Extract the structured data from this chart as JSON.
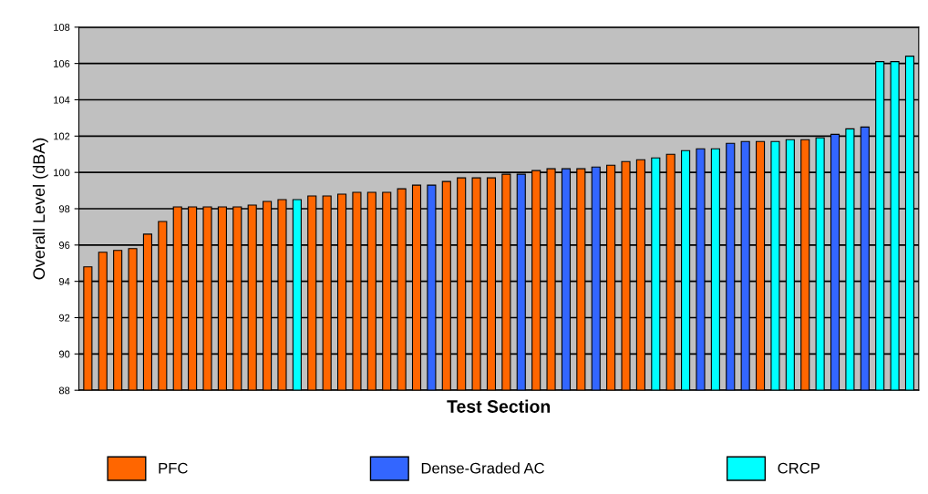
{
  "chart_data": {
    "type": "bar",
    "xlabel": "Test Section",
    "ylabel": "Overall Level (dBA)",
    "categories": [
      null,
      null,
      null,
      null,
      null,
      null,
      null,
      null,
      null,
      null,
      null,
      null,
      null,
      null,
      null,
      null,
      null,
      null,
      null,
      null,
      null,
      null,
      null,
      null,
      null,
      null,
      null,
      null,
      null,
      null,
      null,
      null,
      null,
      null,
      null,
      null,
      null,
      null,
      null,
      null,
      null,
      null,
      null,
      null,
      null,
      null,
      null,
      null,
      null,
      null,
      null,
      null,
      null,
      null,
      null,
      null
    ],
    "series": [
      {
        "name": "PFC",
        "color": "#ff6600",
        "values": [
          94.8,
          95.6,
          95.7,
          95.8,
          96.6,
          97.3,
          98.1,
          98.1,
          98.1,
          98.1,
          98.1,
          98.2,
          98.4,
          98.5,
          null,
          98.7,
          98.7,
          98.8,
          98.9,
          98.9,
          98.9,
          99.1,
          99.3,
          null,
          99.5,
          99.7,
          99.7,
          99.7,
          99.9,
          null,
          100.1,
          100.2,
          null,
          100.2,
          null,
          100.4,
          100.6,
          100.7,
          null,
          101.0,
          null,
          null,
          null,
          null,
          null,
          101.7,
          null,
          null,
          101.8,
          null,
          null,
          null,
          null,
          null,
          null,
          null
        ]
      },
      {
        "name": "Dense-Graded AC",
        "color": "#3366ff",
        "values": [
          null,
          null,
          null,
          null,
          null,
          null,
          null,
          null,
          null,
          null,
          null,
          null,
          null,
          null,
          null,
          null,
          null,
          null,
          null,
          null,
          null,
          null,
          null,
          99.3,
          null,
          null,
          null,
          null,
          null,
          99.9,
          null,
          null,
          100.2,
          null,
          100.3,
          null,
          null,
          null,
          null,
          null,
          null,
          101.3,
          null,
          101.6,
          101.7,
          null,
          null,
          null,
          null,
          null,
          102.1,
          null,
          102.5,
          null,
          null,
          null
        ]
      },
      {
        "name": "CRCP",
        "color": "#00ffff",
        "values": [
          null,
          null,
          null,
          null,
          null,
          null,
          null,
          null,
          null,
          null,
          null,
          null,
          null,
          null,
          98.5,
          null,
          null,
          null,
          null,
          null,
          null,
          null,
          null,
          null,
          null,
          null,
          null,
          null,
          null,
          null,
          null,
          null,
          null,
          null,
          null,
          null,
          null,
          null,
          100.8,
          null,
          101.2,
          null,
          101.3,
          null,
          null,
          null,
          101.7,
          101.8,
          null,
          101.9,
          null,
          102.4,
          null,
          106.1,
          106.1,
          106.4
        ]
      }
    ],
    "ylim": [
      88,
      108
    ],
    "yticks": [
      88,
      90,
      92,
      94,
      96,
      98,
      100,
      102,
      104,
      106,
      108
    ],
    "grid": "y",
    "legend": "bottom"
  }
}
